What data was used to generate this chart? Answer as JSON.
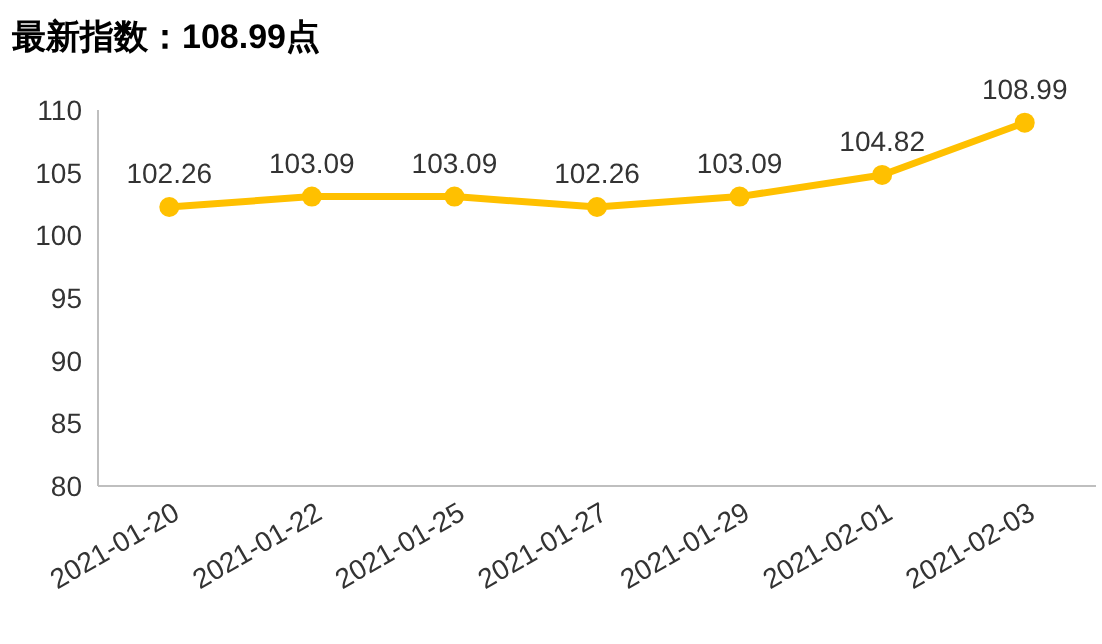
{
  "chart_data": {
    "type": "line",
    "title": "最新指数：108.99点",
    "categories": [
      "2021-01-20",
      "2021-01-22",
      "2021-01-25",
      "2021-01-27",
      "2021-01-29",
      "2021-02-01",
      "2021-02-03"
    ],
    "series": [
      {
        "color": "#ffc000",
        "values": [
          102.26,
          103.09,
          103.09,
          102.26,
          103.09,
          104.82,
          108.99
        ]
      }
    ],
    "ylim": [
      80,
      110
    ],
    "yticks": [
      80,
      85,
      90,
      95,
      100,
      105,
      110
    ],
    "data_labels": true,
    "marker": "circle",
    "line_style": "solid",
    "grid": false
  }
}
